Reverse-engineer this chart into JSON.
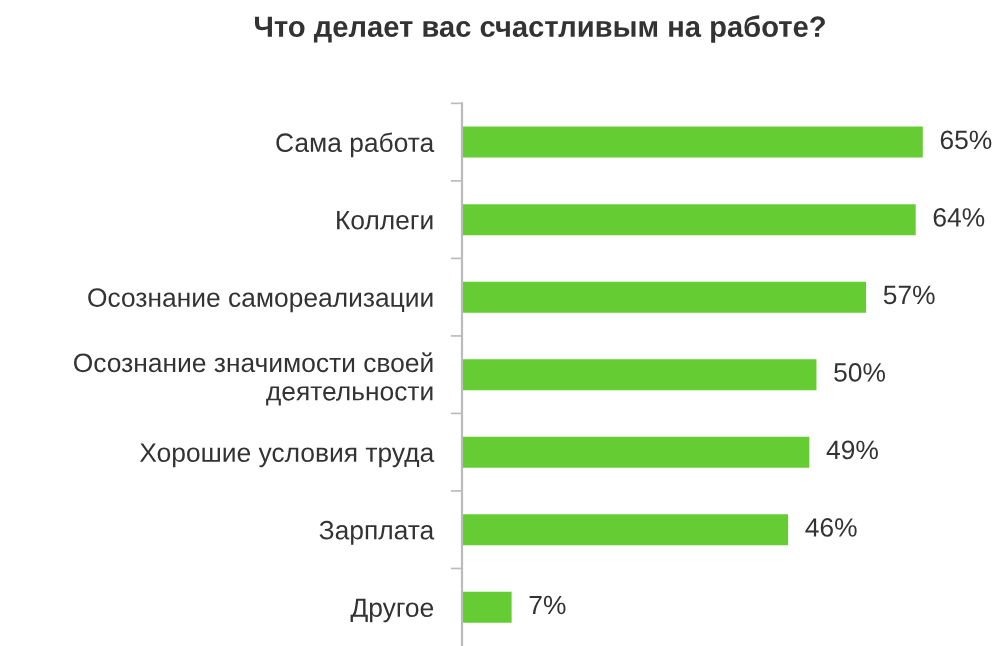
{
  "chart_data": {
    "type": "bar",
    "orientation": "horizontal",
    "title": "Что делает вас счастливым на работе?",
    "categories": [
      "Сама работа",
      "Коллеги",
      "Осознание самореализации",
      "Осознание значимости своей\nдеятельности",
      "Хорошие условия труда",
      "Зарплата",
      "Другое"
    ],
    "values": [
      65,
      64,
      57,
      50,
      49,
      46,
      7
    ],
    "value_labels": [
      "65%",
      "64%",
      "57%",
      "50%",
      "49%",
      "46%",
      "7%"
    ],
    "color": "#66cc33",
    "grid": false,
    "legend": false
  }
}
